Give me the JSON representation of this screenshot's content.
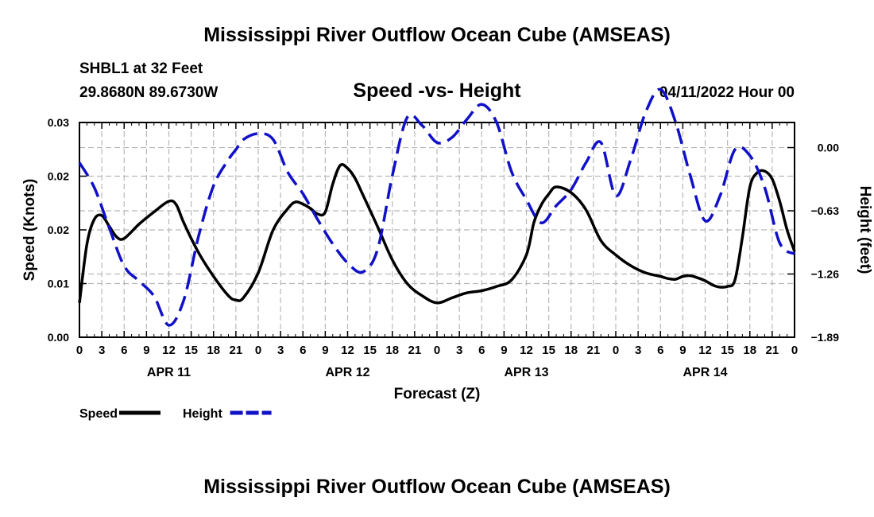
{
  "header": {
    "title": "Mississippi River Outflow Ocean Cube (AMSEAS)",
    "station": "SHBL1 at 32 Feet",
    "coords": "29.8680N  89.6730W",
    "subtitle": "Speed -vs- Height",
    "datetime": "04/11/2022 Hour 00"
  },
  "footer": {
    "title": "Mississippi River Outflow Ocean Cube (AMSEAS)"
  },
  "chart_data": {
    "type": "line",
    "title": "Speed -vs- Height",
    "xlabel": "Forecast (Z)",
    "ylabel": "Speed (Knots)",
    "y2label": "Height (feet)",
    "x_range": [
      0,
      96
    ],
    "x_tick_labels": [
      "0",
      "3",
      "6",
      "9",
      "12",
      "15",
      "18",
      "21",
      "0",
      "3",
      "6",
      "9",
      "12",
      "15",
      "18",
      "21",
      "0",
      "3",
      "6",
      "9",
      "12",
      "15",
      "18",
      "21",
      "0",
      "3",
      "6",
      "9",
      "12",
      "15",
      "18",
      "21",
      "0"
    ],
    "day_labels": [
      {
        "label": "APR 11",
        "hour": 12
      },
      {
        "label": "APR 12",
        "hour": 36
      },
      {
        "label": "APR 13",
        "hour": 60
      },
      {
        "label": "APR 14",
        "hour": 84
      }
    ],
    "y_left": {
      "range": [
        0,
        0.03
      ],
      "ticks": [
        0,
        0.0075,
        0.015,
        0.0225,
        0.03
      ],
      "tick_labels": [
        "0.00",
        "0.01",
        "0.02",
        "0.02",
        "0.03"
      ]
    },
    "y_right": {
      "range": [
        -1.89,
        0.25
      ],
      "ticks": [
        0.0,
        -0.63,
        -1.26,
        -1.89
      ],
      "tick_labels": [
        "0.00",
        "−0.63",
        "−1.26",
        "−1.89"
      ]
    },
    "grid": true,
    "legend": [
      {
        "name": "Speed",
        "color": "#000000",
        "style": "solid"
      },
      {
        "name": "Height",
        "color": "#1010c8",
        "style": "dashed"
      }
    ],
    "series": [
      {
        "name": "Speed",
        "axis": "left",
        "color": "#000000",
        "style": "solid",
        "x": [
          0,
          1,
          2,
          3,
          4,
          5,
          6,
          8,
          10,
          12,
          13,
          14,
          16,
          18,
          20,
          21,
          22,
          24,
          26,
          28,
          29,
          30,
          31,
          32,
          33,
          34,
          35,
          36,
          37,
          38,
          40,
          42,
          44,
          46,
          48,
          50,
          52,
          54,
          56,
          58,
          60,
          61,
          62,
          63,
          64,
          66,
          68,
          70,
          72,
          74,
          76,
          78,
          79,
          80,
          81,
          82,
          83,
          84,
          85,
          86,
          87,
          88,
          89,
          90,
          91,
          92,
          93,
          94,
          95,
          96
        ],
        "values": [
          0.0048,
          0.013,
          0.0165,
          0.017,
          0.0155,
          0.014,
          0.0138,
          0.0158,
          0.0175,
          0.019,
          0.0185,
          0.016,
          0.0118,
          0.0085,
          0.0058,
          0.0052,
          0.0055,
          0.009,
          0.015,
          0.018,
          0.0189,
          0.0186,
          0.018,
          0.0172,
          0.0175,
          0.0214,
          0.024,
          0.0236,
          0.0222,
          0.02,
          0.0155,
          0.0108,
          0.0075,
          0.0058,
          0.0048,
          0.0055,
          0.0062,
          0.0065,
          0.0071,
          0.008,
          0.0115,
          0.016,
          0.0185,
          0.02,
          0.021,
          0.0202,
          0.0178,
          0.0135,
          0.0115,
          0.01,
          0.009,
          0.0085,
          0.0082,
          0.0081,
          0.0085,
          0.0086,
          0.0083,
          0.0079,
          0.0073,
          0.007,
          0.0071,
          0.008,
          0.014,
          0.021,
          0.023,
          0.0232,
          0.0221,
          0.019,
          0.015,
          0.012
        ]
      },
      {
        "name": "Height",
        "axis": "right",
        "color": "#1010c8",
        "style": "dashed",
        "x": [
          0,
          2,
          4,
          6,
          8,
          10,
          12,
          14,
          16,
          18,
          20,
          21,
          22,
          24,
          26,
          28,
          30,
          32,
          34,
          36,
          38,
          40,
          42,
          44,
          46,
          48,
          50,
          52,
          54,
          56,
          58,
          60,
          62,
          64,
          66,
          68,
          70,
          72,
          74,
          76,
          78,
          80,
          82,
          84,
          86,
          88,
          90,
          92,
          94,
          96
        ],
        "values": [
          -0.15,
          -0.4,
          -0.8,
          -1.18,
          -1.33,
          -1.48,
          -1.77,
          -1.52,
          -0.88,
          -0.38,
          -0.12,
          -0.02,
          0.08,
          0.14,
          0.08,
          -0.25,
          -0.46,
          -0.72,
          -0.96,
          -1.15,
          -1.24,
          -1.02,
          -0.28,
          0.3,
          0.22,
          0.05,
          0.1,
          0.28,
          0.43,
          0.25,
          -0.24,
          -0.52,
          -0.75,
          -0.58,
          -0.42,
          -0.15,
          0.05,
          -0.48,
          -0.12,
          0.35,
          0.58,
          0.26,
          -0.28,
          -0.73,
          -0.48,
          -0.02,
          -0.08,
          -0.4,
          -0.95,
          -1.06
        ]
      }
    ]
  }
}
